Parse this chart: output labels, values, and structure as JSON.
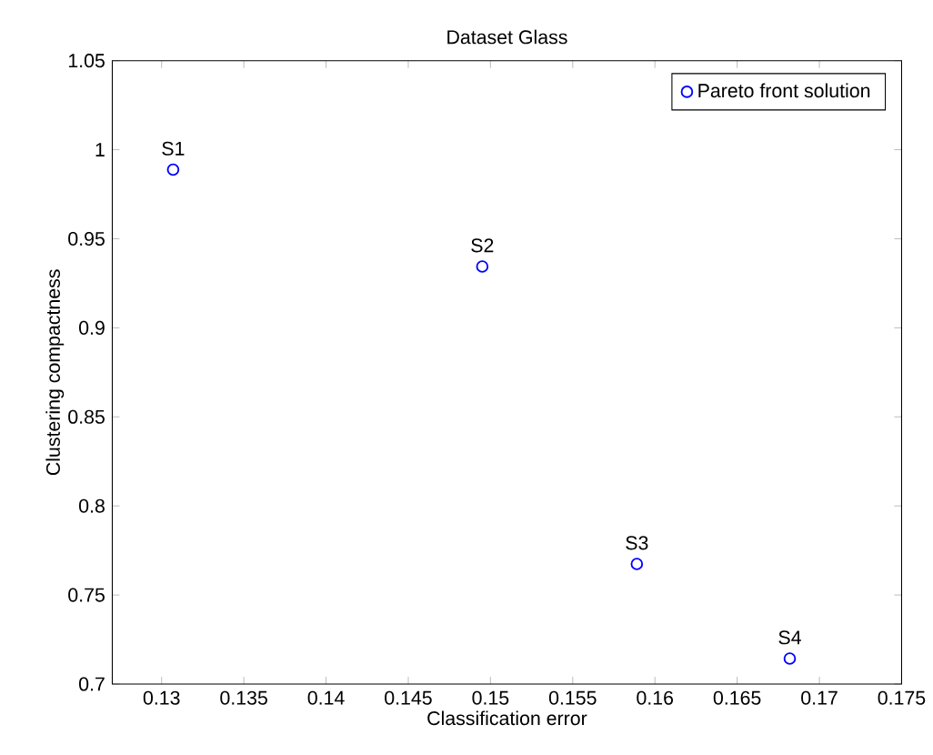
{
  "chart_data": {
    "type": "scatter",
    "title": "Dataset Glass",
    "xlabel": "Classification error",
    "ylabel": "Clustering compactness",
    "x": [
      0.1307,
      0.1495,
      0.1589,
      0.1682
    ],
    "series": [
      {
        "name": "Pareto front solution",
        "color": "#0000ff",
        "values": [
          0.9888,
          0.9344,
          0.7674,
          0.7143
        ]
      }
    ],
    "annotations": [
      {
        "text": "S1",
        "x": 0.1307,
        "y": 0.9888
      },
      {
        "text": "S2",
        "x": 0.1495,
        "y": 0.9344
      },
      {
        "text": "S3",
        "x": 0.1589,
        "y": 0.7674
      },
      {
        "text": "S4",
        "x": 0.1682,
        "y": 0.7143
      }
    ],
    "xlim": [
      0.127,
      0.175
    ],
    "ylim": [
      0.7,
      1.05
    ],
    "xticks": [
      0.13,
      0.135,
      0.14,
      0.145,
      0.15,
      0.155,
      0.16,
      0.165,
      0.17,
      0.175
    ],
    "yticks": [
      0.7,
      0.75,
      0.8,
      0.85,
      0.9,
      0.95,
      1,
      1.05
    ],
    "grid": false,
    "legend": "top right",
    "marker": "circle"
  }
}
